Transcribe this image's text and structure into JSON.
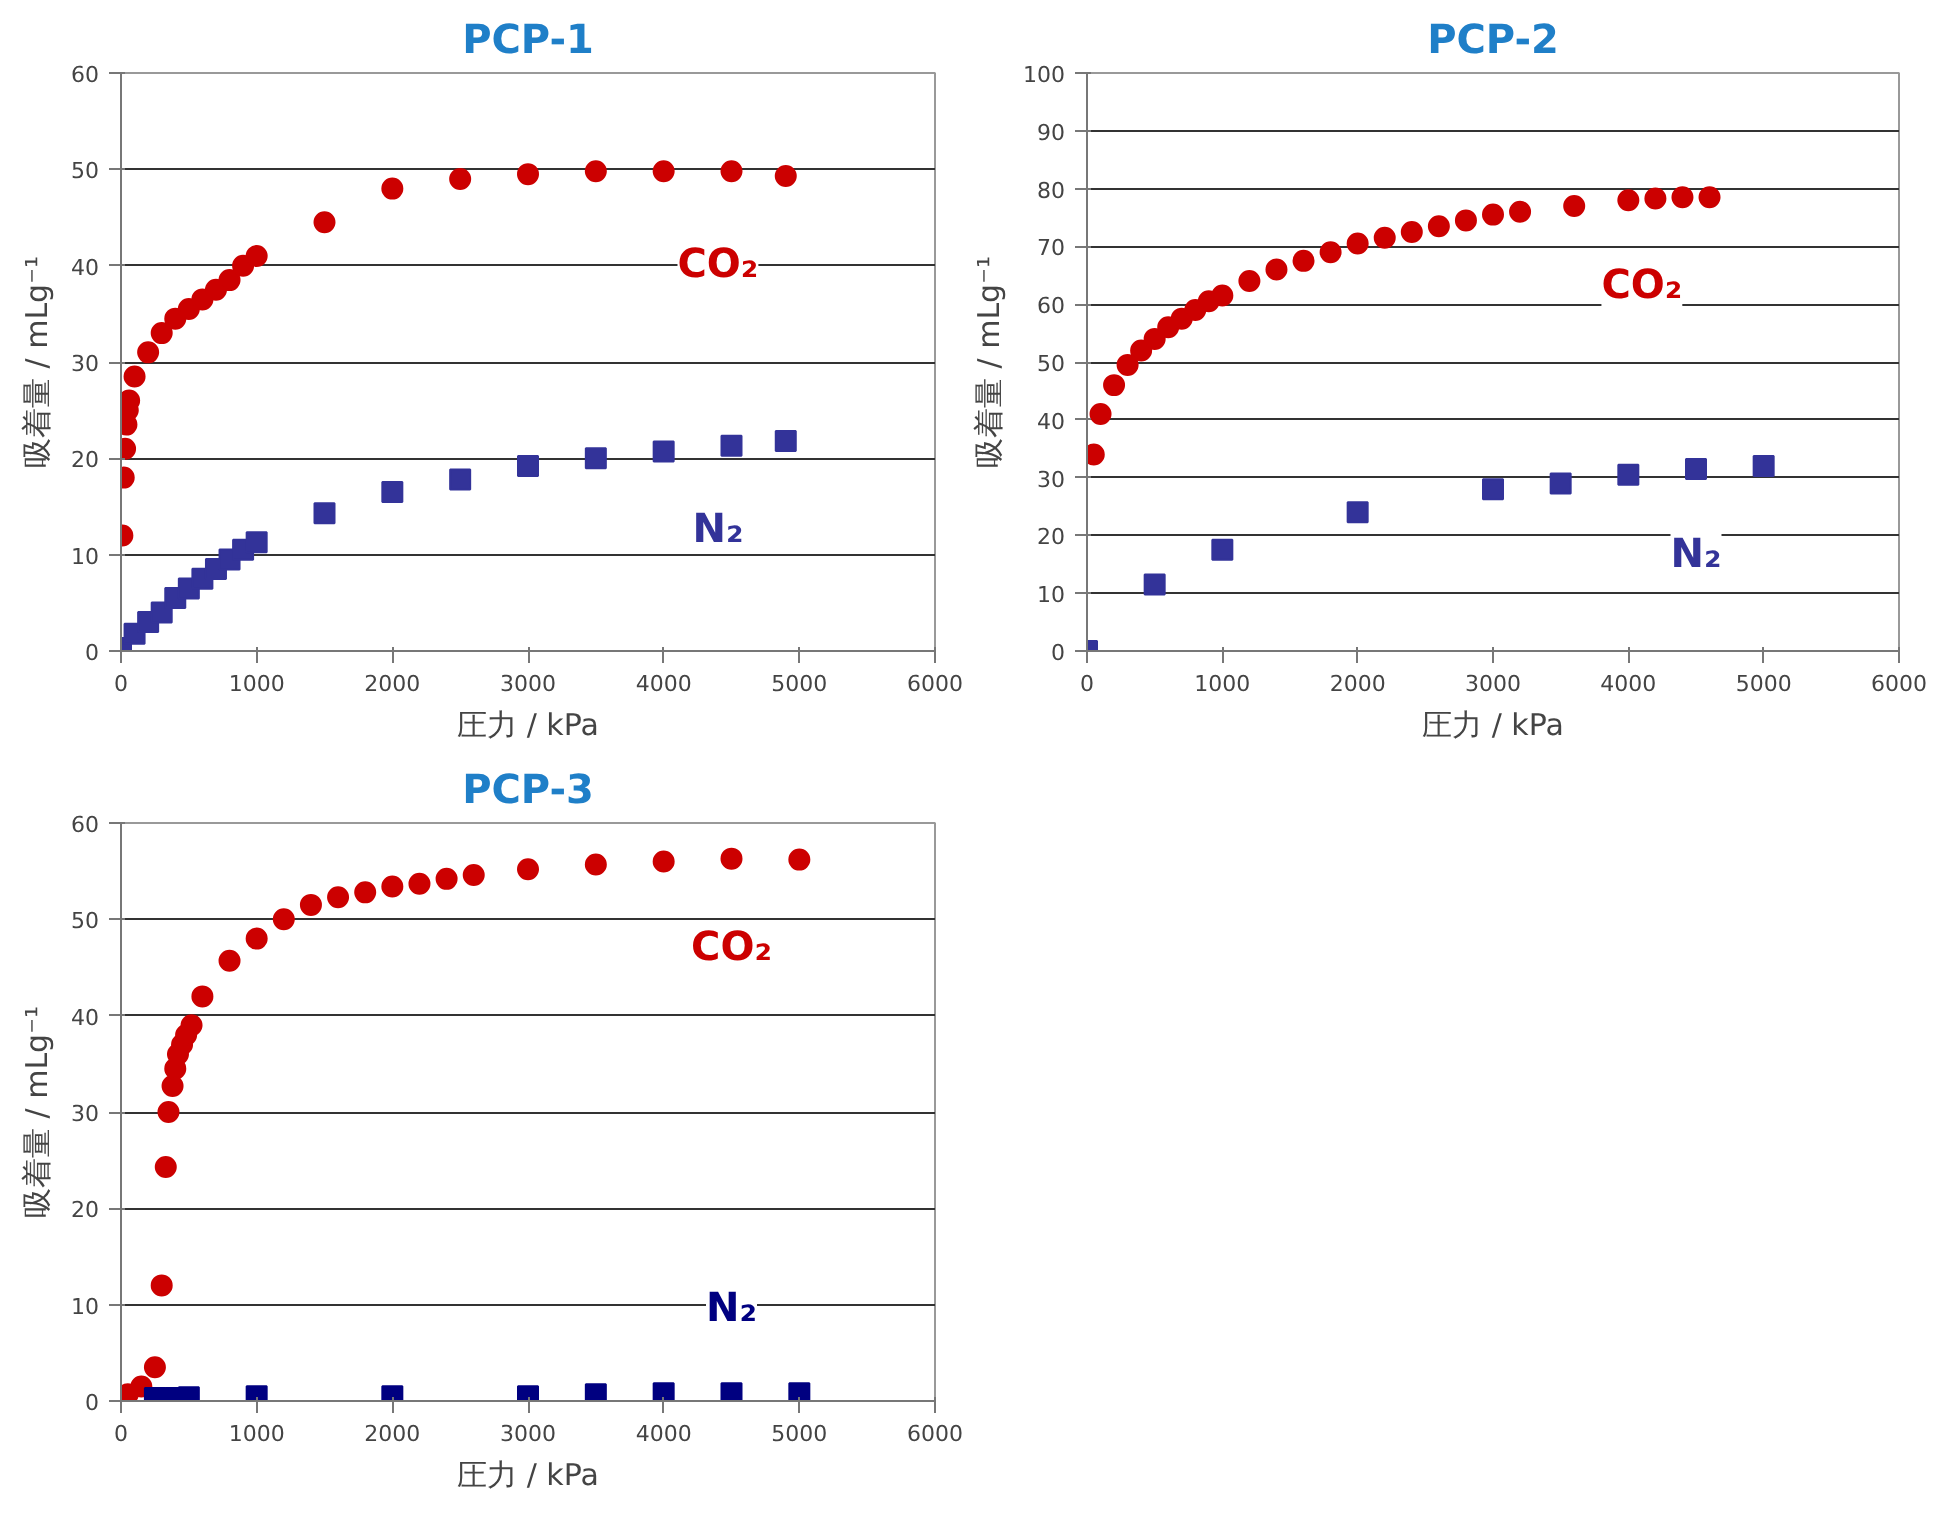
{
  "chart_data": [
    {
      "type": "scatter",
      "title": "PCP-1",
      "xlabel": "圧力 / kPa",
      "ylabel": "吸着量 / mLg⁻¹",
      "xlim": [
        0,
        6000
      ],
      "ylim": [
        0,
        60
      ],
      "xticks": [
        0,
        1000,
        2000,
        3000,
        4000,
        5000,
        6000
      ],
      "yticks": [
        0,
        10,
        20,
        30,
        40,
        50,
        60
      ],
      "grid": "y",
      "series": [
        {
          "name": "CO₂",
          "color": "#cc0000",
          "marker": "circle",
          "x": [
            10,
            20,
            30,
            40,
            50,
            60,
            100,
            200,
            300,
            400,
            500,
            600,
            700,
            800,
            900,
            1000,
            1500,
            2000,
            2500,
            3000,
            3500,
            4000,
            4500,
            4900
          ],
          "values": [
            12,
            18,
            21,
            23.5,
            25,
            26,
            28.5,
            31,
            33,
            34.5,
            35.5,
            36.5,
            37.5,
            38.5,
            40,
            41,
            44.5,
            48,
            49,
            49.5,
            49.8,
            49.8,
            49.8,
            49.3
          ]
        },
        {
          "name": "N₂",
          "color": "#333399",
          "marker": "square",
          "x": [
            0,
            100,
            200,
            300,
            400,
            500,
            600,
            700,
            800,
            900,
            1000,
            1500,
            2000,
            2500,
            3000,
            3500,
            4000,
            4500,
            4900
          ],
          "values": [
            0.3,
            1.8,
            3,
            4,
            5.5,
            6.5,
            7.5,
            8.5,
            9.5,
            10.5,
            11.3,
            14.3,
            16.5,
            17.8,
            19.2,
            20,
            20.7,
            21.3,
            21.8
          ]
        }
      ]
    },
    {
      "type": "scatter",
      "title": "PCP-2",
      "xlabel": "圧力 / kPa",
      "ylabel": "吸着量 / mLg⁻¹",
      "xlim": [
        0,
        6000
      ],
      "ylim": [
        0,
        100
      ],
      "xticks": [
        0,
        1000,
        2000,
        3000,
        4000,
        5000,
        6000
      ],
      "yticks": [
        0,
        10,
        20,
        30,
        40,
        50,
        60,
        70,
        80,
        90,
        100
      ],
      "grid": "y",
      "series": [
        {
          "name": "CO₂",
          "color": "#cc0000",
          "marker": "circle",
          "x": [
            50,
            100,
            200,
            300,
            400,
            500,
            600,
            700,
            800,
            900,
            1000,
            1200,
            1400,
            1600,
            1800,
            2000,
            2200,
            2400,
            2600,
            2800,
            3000,
            3200,
            3600,
            4000,
            4200,
            4400,
            4600
          ],
          "values": [
            34,
            41,
            46,
            49.5,
            52,
            54,
            56,
            57.5,
            59,
            60.5,
            61.5,
            64,
            66,
            67.5,
            69,
            70.5,
            71.5,
            72.5,
            73.5,
            74.5,
            75.5,
            76,
            77,
            78,
            78.3,
            78.5,
            78.5
          ]
        },
        {
          "name": "N₂",
          "color": "#333399",
          "marker": "square",
          "x": [
            0,
            500,
            1000,
            2000,
            3000,
            3500,
            4000,
            4500,
            5000
          ],
          "values": [
            0,
            11.5,
            17.5,
            24,
            28,
            29,
            30.5,
            31.5,
            32
          ]
        }
      ]
    },
    {
      "type": "scatter",
      "title": "PCP-3",
      "xlabel": "圧力 / kPa",
      "ylabel": "吸着量 / mLg⁻¹",
      "xlim": [
        0,
        6000
      ],
      "ylim": [
        0,
        60
      ],
      "xticks": [
        0,
        1000,
        2000,
        3000,
        4000,
        5000,
        6000
      ],
      "yticks": [
        0,
        10,
        20,
        30,
        40,
        50,
        60
      ],
      "grid": "y",
      "series": [
        {
          "name": "CO₂",
          "color": "#cc0000",
          "marker": "circle",
          "x": [
            50,
            150,
            250,
            300,
            330,
            350,
            380,
            400,
            420,
            450,
            480,
            520,
            600,
            800,
            1000,
            1200,
            1400,
            1600,
            1800,
            2000,
            2200,
            2400,
            2600,
            3000,
            3500,
            4000,
            4500,
            5000
          ],
          "values": [
            0.7,
            1.5,
            3.5,
            12,
            24.3,
            30,
            32.7,
            34.5,
            36,
            37,
            38,
            39,
            42,
            45.7,
            48,
            50,
            51.5,
            52.3,
            52.8,
            53.4,
            53.7,
            54.2,
            54.6,
            55.2,
            55.7,
            56,
            56.3,
            56.2
          ]
        },
        {
          "name": "N₂",
          "color": "#000080",
          "marker": "square",
          "x": [
            250,
            400,
            500,
            1000,
            2000,
            3000,
            3500,
            4000,
            4500,
            5000
          ],
          "values": [
            0.3,
            0.3,
            0.4,
            0.5,
            0.5,
            0.5,
            0.7,
            0.8,
            0.8,
            0.8
          ]
        }
      ]
    }
  ]
}
